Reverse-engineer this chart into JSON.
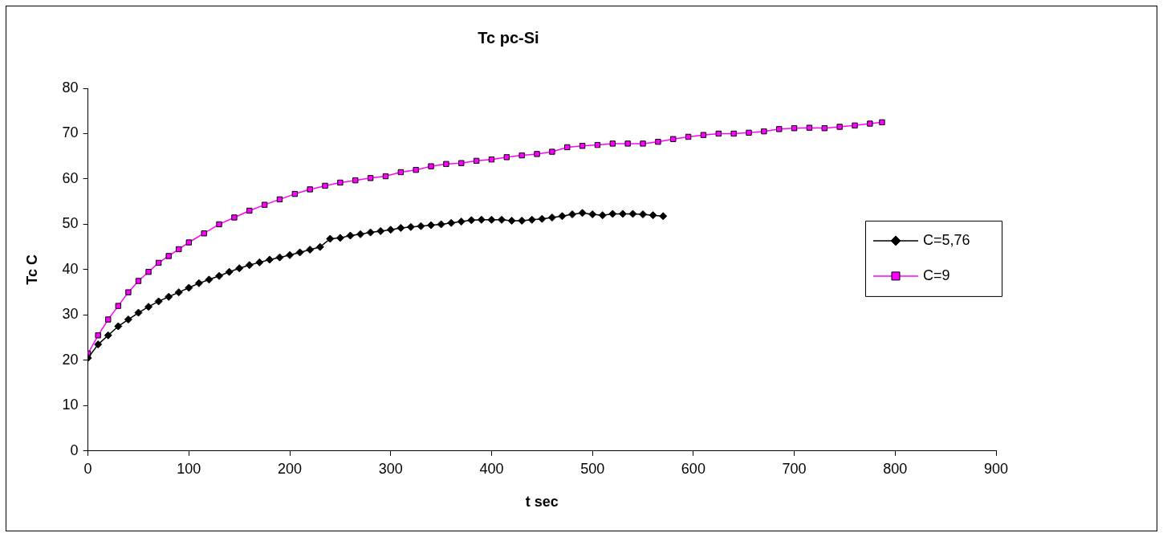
{
  "chart_data": {
    "type": "line",
    "title": "Tc pc-Si",
    "xlabel": "t sec",
    "ylabel": "Tc C",
    "xlim": [
      0,
      900
    ],
    "xticks": [
      0,
      100,
      200,
      300,
      400,
      500,
      600,
      700,
      800,
      900
    ],
    "ylim": [
      0,
      80
    ],
    "yticks": [
      0,
      10,
      20,
      30,
      40,
      50,
      60,
      70,
      80
    ],
    "grid": false,
    "legend": "right",
    "line_style": "solid",
    "series": [
      {
        "name": "C=5,76",
        "color": "#000000",
        "marker": "diamond",
        "x": [
          0,
          10,
          20,
          30,
          40,
          50,
          60,
          70,
          80,
          90,
          100,
          110,
          120,
          130,
          140,
          150,
          160,
          170,
          180,
          190,
          200,
          210,
          220,
          230,
          240,
          250,
          260,
          270,
          280,
          290,
          300,
          310,
          320,
          330,
          340,
          350,
          360,
          370,
          380,
          390,
          400,
          410,
          420,
          430,
          440,
          450,
          460,
          470,
          480,
          490,
          500,
          510,
          520,
          530,
          540,
          550,
          560,
          570
        ],
        "values": [
          20.5,
          23.5,
          25.5,
          27.5,
          29,
          30.5,
          31.8,
          33,
          34,
          35,
          36,
          37,
          37.8,
          38.6,
          39.5,
          40.3,
          41,
          41.6,
          42.2,
          42.7,
          43.2,
          43.8,
          44.4,
          45,
          46.8,
          47,
          47.5,
          47.8,
          48.2,
          48.5,
          48.8,
          49.2,
          49.4,
          49.6,
          49.8,
          50,
          50.3,
          50.6,
          50.9,
          51,
          51,
          51,
          50.8,
          50.8,
          51,
          51.2,
          51.5,
          51.8,
          52.2,
          52.5,
          52.2,
          52,
          52.3,
          52.3,
          52.3,
          52.2,
          52,
          51.8
        ]
      },
      {
        "name": "C=9",
        "color": "#ff00ff",
        "marker": "square",
        "x": [
          0,
          10,
          20,
          30,
          40,
          50,
          60,
          70,
          80,
          90,
          100,
          115,
          130,
          145,
          160,
          175,
          190,
          205,
          220,
          235,
          250,
          265,
          280,
          295,
          310,
          325,
          340,
          355,
          370,
          385,
          400,
          415,
          430,
          445,
          460,
          475,
          490,
          505,
          520,
          535,
          550,
          565,
          580,
          595,
          610,
          625,
          640,
          655,
          670,
          685,
          700,
          715,
          730,
          745,
          760,
          775,
          787
        ],
        "values": [
          21.5,
          25.5,
          29,
          32,
          35,
          37.5,
          39.5,
          41.5,
          43,
          44.5,
          46,
          48,
          50,
          51.5,
          53,
          54.3,
          55.5,
          56.7,
          57.7,
          58.5,
          59.2,
          59.7,
          60.2,
          60.6,
          61.5,
          62,
          62.8,
          63.3,
          63.5,
          64,
          64.3,
          64.8,
          65.2,
          65.5,
          66,
          67,
          67.3,
          67.5,
          67.8,
          67.8,
          67.8,
          68.2,
          68.8,
          69.3,
          69.7,
          70,
          70,
          70.2,
          70.5,
          71,
          71.2,
          71.3,
          71.2,
          71.5,
          71.8,
          72.2,
          72.5
        ]
      }
    ]
  }
}
